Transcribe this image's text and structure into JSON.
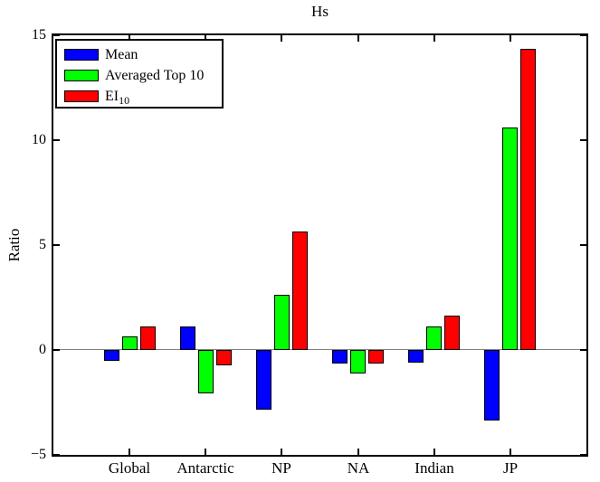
{
  "chart_data": {
    "type": "bar",
    "title": "Hs",
    "xlabel": "",
    "ylabel": "Ratio",
    "categories": [
      "Global",
      "Antarctic",
      "NP",
      "NA",
      "Indian",
      "JP"
    ],
    "series": [
      {
        "name": "Mean",
        "color": "#0000ff",
        "values": [
          -0.5,
          1.1,
          -2.85,
          -0.65,
          -0.6,
          -3.35
        ]
      },
      {
        "name": "Averaged Top 10",
        "color": "#00ff00",
        "values": [
          0.65,
          -2.05,
          2.65,
          -1.1,
          1.1,
          10.6
        ]
      },
      {
        "name": "EI_10",
        "color": "#ff0000",
        "values": [
          1.1,
          -0.75,
          5.65,
          -0.65,
          1.65,
          14.35
        ]
      }
    ],
    "ylim": [
      -5,
      15
    ],
    "yticks": [
      15,
      10,
      5,
      0,
      -5
    ],
    "grid": false,
    "legend_position": "top-left",
    "frame_color": "#000000",
    "zero_line_color": "#808080",
    "background": "#ffffff"
  },
  "legend": {
    "items": [
      {
        "label": "Mean"
      },
      {
        "label": "Averaged Top 10"
      },
      {
        "label": "EI",
        "sub": "10"
      }
    ]
  }
}
